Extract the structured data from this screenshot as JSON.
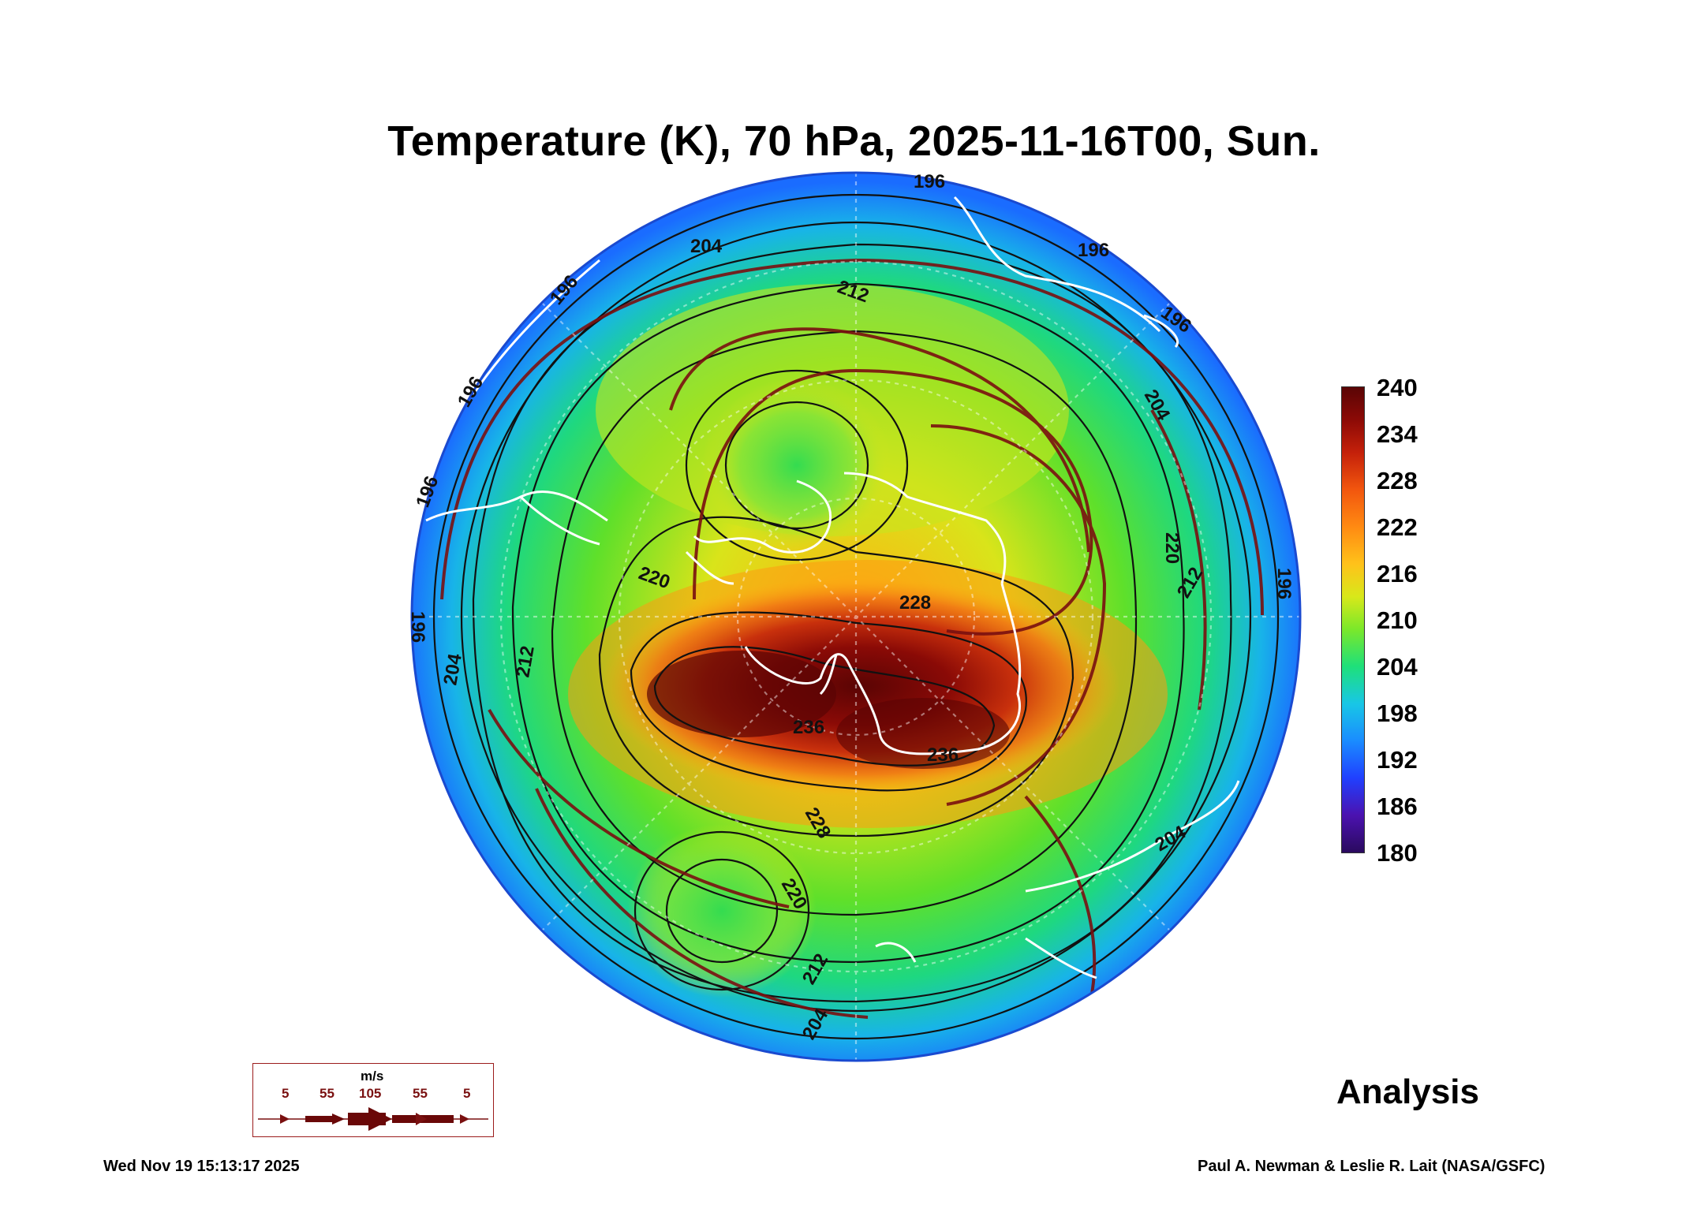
{
  "title": "Temperature (K), 70 hPa, 2025-11-16T00, Sun.",
  "colorbar": {
    "ticks": [
      "240",
      "234",
      "228",
      "222",
      "216",
      "210",
      "204",
      "198",
      "192",
      "186",
      "180"
    ],
    "min": 180,
    "max": 240
  },
  "contour_labels": [
    "196",
    "196",
    "196",
    "196",
    "196",
    "196",
    "196",
    "204",
    "204",
    "204",
    "204",
    "204",
    "212",
    "212",
    "212",
    "212",
    "220",
    "220",
    "220",
    "228",
    "228",
    "236",
    "236",
    "196"
  ],
  "wind_legend": {
    "unit": "m/s",
    "speeds": [
      "5",
      "55",
      "105",
      "55",
      "5"
    ]
  },
  "analysis_label": "Analysis",
  "footer": {
    "timestamp": "Wed Nov 19 15:13:17 2025",
    "credit": "Paul A. Newman & Leslie R. Lait (NASA/GSFC)"
  },
  "colors": {
    "coastline": "#ffffff",
    "contour": "#111111",
    "streamline": "#7a1010",
    "warm_core": "#6a0606",
    "cold_edge": "#1a6fff"
  }
}
